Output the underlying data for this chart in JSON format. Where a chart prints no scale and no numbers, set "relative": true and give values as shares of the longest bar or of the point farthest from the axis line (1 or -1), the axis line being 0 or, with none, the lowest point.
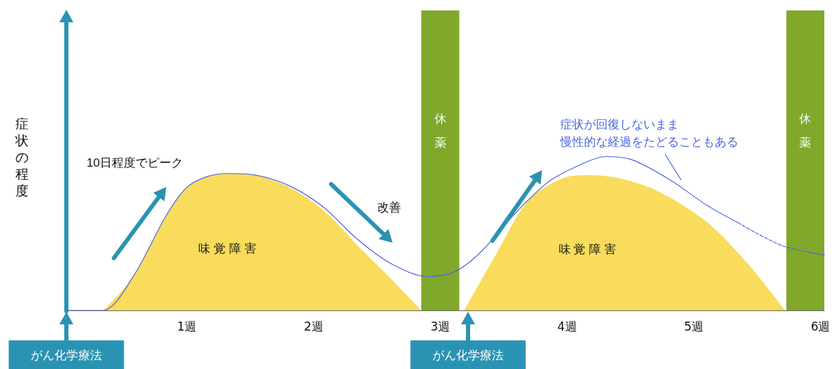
{
  "chart_data": {
    "type": "area",
    "relative": true,
    "ylabel": "症状の程度",
    "xlim": [
      0.05,
      6.03
    ],
    "xticks": [
      {
        "value": 1,
        "label": "1週"
      },
      {
        "value": 2,
        "label": "2週"
      },
      {
        "value": 3,
        "label": "3週"
      },
      {
        "value": 4,
        "label": "4週"
      },
      {
        "value": 5,
        "label": "5週"
      },
      {
        "value": 6,
        "label": "6週"
      }
    ],
    "series": [
      {
        "name": "味 覚 障 害",
        "type": "area",
        "color": "#f9dc5c",
        "x": [
          0.34,
          0.57,
          0.84,
          1.0,
          1.16,
          1.32,
          1.54,
          1.81,
          2.08,
          2.35,
          2.57,
          2.85
        ],
        "values": [
          0,
          0.21,
          0.62,
          0.8,
          0.87,
          0.89,
          0.88,
          0.8,
          0.65,
          0.42,
          0.24,
          0
        ]
      },
      {
        "name": "味 覚 障 害",
        "type": "area",
        "color": "#f9dc5c",
        "x": [
          3.19,
          3.43,
          3.7,
          3.97,
          4.16,
          4.41,
          4.73,
          5.11,
          5.43,
          5.72
        ],
        "values": [
          0,
          0.35,
          0.72,
          0.86,
          0.88,
          0.86,
          0.77,
          0.57,
          0.3,
          0
        ]
      },
      {
        "type": "line",
        "color": "#4a64e0",
        "line_style": "solid",
        "x": [
          0.05,
          0.34,
          0.57,
          0.84,
          1.0,
          1.16,
          1.32,
          1.54,
          1.81,
          2.08,
          2.35,
          2.62,
          2.89,
          3.11,
          3.32,
          3.59,
          3.86,
          4.14,
          4.3,
          4.51,
          4.81,
          5.11,
          5.35
        ],
        "values": [
          0,
          0,
          0.21,
          0.62,
          0.8,
          0.87,
          0.89,
          0.88,
          0.81,
          0.67,
          0.46,
          0.3,
          0.22,
          0.25,
          0.38,
          0.63,
          0.84,
          0.96,
          1.0,
          0.98,
          0.85,
          0.68,
          0.57
        ]
      },
      {
        "type": "line",
        "color": "#4a64e0",
        "line_style": "dashed",
        "x": [
          5.35,
          5.7,
          6.03
        ],
        "values": [
          0.57,
          0.42,
          0.36
        ]
      }
    ],
    "bands": [
      {
        "axis": "x",
        "from": 2.85,
        "to": 3.15,
        "label": "休薬",
        "color": "#80a82b"
      },
      {
        "axis": "x",
        "from": 5.73,
        "to": 6.03,
        "label": "休薬",
        "color": "#80a82b"
      }
    ],
    "annotations": [
      "10日程度でピーク",
      "改善",
      "症状が回復しないまま",
      "慢性的な経過をたどることもある",
      "がん化学療法",
      "がん化学療法"
    ]
  }
}
